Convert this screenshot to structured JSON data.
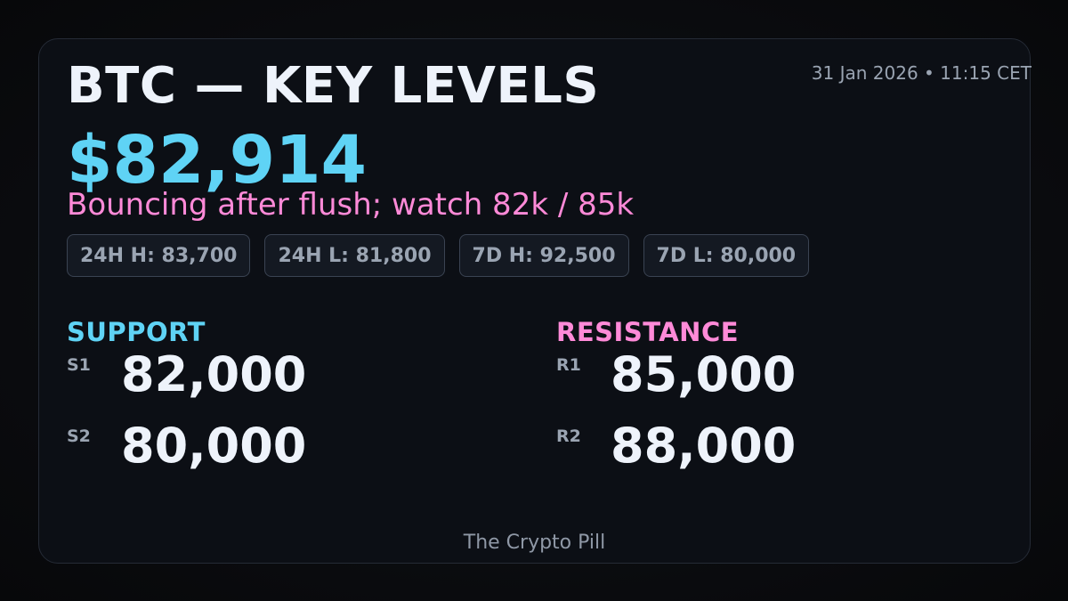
{
  "header": {
    "title": "BTC — KEY LEVELS",
    "timestamp": "31 Jan 2026 • 11:15 CET"
  },
  "price": "$82,914",
  "subtitle": "Bouncing after flush; watch 82k / 85k",
  "stats": [
    "24H H: 83,700",
    "24H L: 81,800",
    "7D H: 92,500",
    "7D L: 80,000"
  ],
  "support": {
    "heading": "SUPPORT",
    "levels": [
      {
        "tag": "S1",
        "value": "82,000"
      },
      {
        "tag": "S2",
        "value": "80,000"
      }
    ]
  },
  "resistance": {
    "heading": "RESISTANCE",
    "levels": [
      {
        "tag": "R1",
        "value": "85,000"
      },
      {
        "tag": "R2",
        "value": "88,000"
      }
    ]
  },
  "footer": "The Crypto Pill",
  "colors": {
    "price": "#5fd3f5",
    "support": "#5fd3f5",
    "resistance": "#ff8ad8",
    "subtitle": "#ff8ad8"
  }
}
